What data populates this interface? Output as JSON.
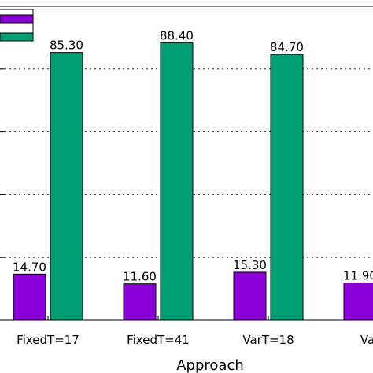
{
  "chart_data": {
    "type": "bar",
    "categories": [
      "FixedT=17",
      "FixedT=41",
      "VarT=18",
      "VarT="
    ],
    "series": [
      {
        "color": "#8b00d6",
        "values": [
          14.7,
          11.6,
          15.3,
          11.9
        ],
        "labels": [
          "14.70",
          "11.60",
          "15.30",
          "11.90"
        ]
      },
      {
        "color": "#009e73",
        "values": [
          85.3,
          88.4,
          84.7,
          null
        ],
        "labels": [
          "85.30",
          "88.40",
          "84.70",
          ""
        ]
      }
    ],
    "xlabel": "Approach",
    "ylabel": "",
    "ylim": [
      0,
      100
    ],
    "grid": "horizontal-dashed",
    "legend": {
      "position": "top-left"
    }
  }
}
